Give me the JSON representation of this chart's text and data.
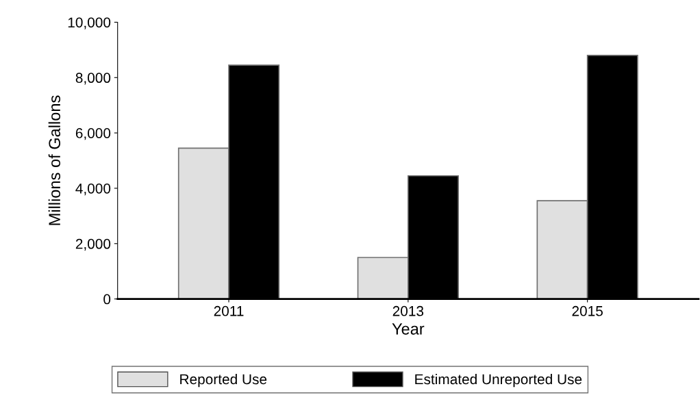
{
  "chart_data": {
    "type": "bar",
    "xlabel": "Year",
    "ylabel": "Millions of Gallons",
    "categories": [
      "2011",
      "2013",
      "2015"
    ],
    "series": [
      {
        "name": "Reported Use",
        "color": "#e0e0e0",
        "values": [
          5450,
          1500,
          3550
        ]
      },
      {
        "name": "Estimated Unreported Use",
        "color": "#000000",
        "values": [
          8450,
          4450,
          8800
        ]
      }
    ],
    "ylim": [
      0,
      10000
    ],
    "yticks": [
      {
        "value": 0,
        "label": "0"
      },
      {
        "value": 2000,
        "label": "2,000"
      },
      {
        "value": 4000,
        "label": "4,000"
      },
      {
        "value": 6000,
        "label": "6,000"
      },
      {
        "value": 8000,
        "label": "8,000"
      },
      {
        "value": 10000,
        "label": "10,000"
      }
    ],
    "grid": false,
    "legend": "bottom"
  }
}
